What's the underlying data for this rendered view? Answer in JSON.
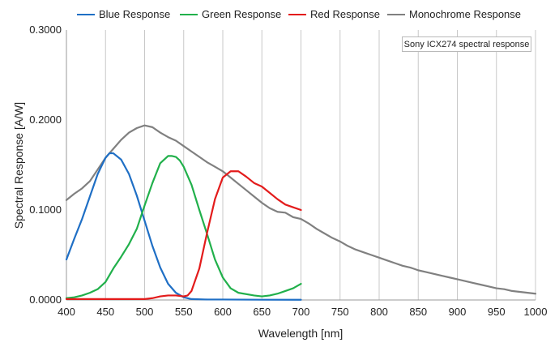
{
  "chart_data": {
    "type": "line",
    "title": "",
    "annotation": "Sony ICX274 spectral response",
    "xlabel": "Wavelength [nm]",
    "ylabel": "Spectral Response [A/W]",
    "xlim": [
      400,
      1000
    ],
    "ylim": [
      0,
      0.3
    ],
    "xticks": [
      400,
      450,
      500,
      550,
      600,
      650,
      700,
      750,
      800,
      850,
      900,
      950,
      1000
    ],
    "yticks": [
      0,
      0.1,
      0.2,
      0.3
    ],
    "ytick_labels": [
      "0.0000",
      "0.1000",
      "0.2000",
      "0.3000"
    ],
    "grid": "vertical",
    "legend_position": "top",
    "series": [
      {
        "name": "Blue Response",
        "color": "#1f6fc5",
        "x": [
          400,
          410,
          420,
          430,
          440,
          450,
          455,
          460,
          470,
          480,
          490,
          500,
          510,
          520,
          530,
          540,
          550,
          560,
          580,
          600,
          650,
          700
        ],
        "y": [
          0.045,
          0.068,
          0.09,
          0.115,
          0.14,
          0.158,
          0.163,
          0.163,
          0.156,
          0.14,
          0.116,
          0.088,
          0.06,
          0.036,
          0.018,
          0.008,
          0.003,
          0.001,
          0.0005,
          0.0005,
          0.0003,
          0.0002
        ]
      },
      {
        "name": "Green Response",
        "color": "#21b04b",
        "x": [
          400,
          410,
          420,
          430,
          440,
          450,
          460,
          470,
          480,
          490,
          500,
          510,
          520,
          530,
          535,
          540,
          545,
          550,
          560,
          570,
          580,
          590,
          600,
          610,
          620,
          640,
          650,
          660,
          670,
          680,
          690,
          700
        ],
        "y": [
          0.002,
          0.003,
          0.005,
          0.008,
          0.012,
          0.02,
          0.035,
          0.048,
          0.062,
          0.079,
          0.105,
          0.13,
          0.152,
          0.16,
          0.16,
          0.159,
          0.155,
          0.148,
          0.128,
          0.1,
          0.073,
          0.045,
          0.025,
          0.013,
          0.008,
          0.005,
          0.004,
          0.005,
          0.007,
          0.01,
          0.013,
          0.018
        ]
      },
      {
        "name": "Red Response",
        "color": "#e31b1b",
        "x": [
          400,
          450,
          500,
          510,
          520,
          530,
          540,
          550,
          555,
          560,
          570,
          580,
          590,
          600,
          610,
          620,
          630,
          640,
          650,
          660,
          670,
          680,
          690,
          700
        ],
        "y": [
          0.001,
          0.001,
          0.001,
          0.002,
          0.004,
          0.005,
          0.005,
          0.004,
          0.005,
          0.01,
          0.035,
          0.075,
          0.112,
          0.136,
          0.143,
          0.143,
          0.137,
          0.13,
          0.126,
          0.119,
          0.112,
          0.106,
          0.103,
          0.1
        ]
      },
      {
        "name": "Monochrome Response",
        "color": "#808080",
        "x": [
          400,
          410,
          420,
          430,
          440,
          450,
          460,
          470,
          480,
          490,
          500,
          510,
          520,
          530,
          540,
          550,
          560,
          570,
          580,
          590,
          600,
          610,
          620,
          630,
          640,
          650,
          660,
          670,
          680,
          690,
          700,
          710,
          720,
          730,
          740,
          750,
          760,
          770,
          780,
          790,
          800,
          810,
          820,
          830,
          840,
          850,
          860,
          870,
          880,
          890,
          900,
          910,
          920,
          930,
          940,
          950,
          960,
          970,
          980,
          990,
          1000
        ],
        "y": [
          0.111,
          0.118,
          0.124,
          0.132,
          0.145,
          0.158,
          0.168,
          0.178,
          0.186,
          0.191,
          0.194,
          0.192,
          0.186,
          0.181,
          0.177,
          0.171,
          0.165,
          0.159,
          0.153,
          0.148,
          0.143,
          0.136,
          0.129,
          0.122,
          0.115,
          0.108,
          0.102,
          0.098,
          0.097,
          0.092,
          0.09,
          0.085,
          0.079,
          0.074,
          0.069,
          0.065,
          0.06,
          0.056,
          0.053,
          0.05,
          0.047,
          0.044,
          0.041,
          0.038,
          0.036,
          0.033,
          0.031,
          0.029,
          0.027,
          0.025,
          0.023,
          0.021,
          0.019,
          0.017,
          0.015,
          0.013,
          0.012,
          0.01,
          0.009,
          0.008,
          0.007
        ]
      }
    ]
  }
}
